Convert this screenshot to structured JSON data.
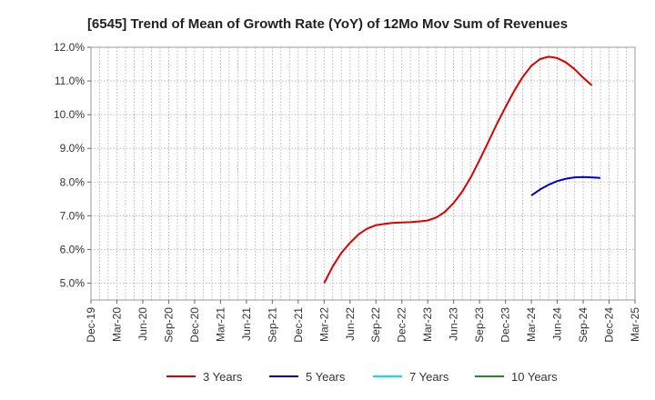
{
  "chart_data": {
    "type": "line",
    "title": "[6545]  Trend of Mean of Growth Rate (YoY) of 12Mo Mov Sum of Revenues",
    "xlabel": "",
    "ylabel": "",
    "ylim": [
      4.5,
      12.0
    ],
    "y_ticks": [
      5.0,
      6.0,
      7.0,
      8.0,
      9.0,
      10.0,
      11.0,
      12.0
    ],
    "y_tick_labels": [
      "5.0%",
      "6.0%",
      "7.0%",
      "8.0%",
      "9.0%",
      "10.0%",
      "11.0%",
      "12.0%"
    ],
    "x_tick_labels": [
      "Dec-19",
      "Mar-20",
      "Jun-20",
      "Sep-20",
      "Dec-20",
      "Mar-21",
      "Jun-21",
      "Sep-21",
      "Dec-21",
      "Mar-22",
      "Jun-22",
      "Sep-22",
      "Dec-22",
      "Mar-23",
      "Jun-23",
      "Sep-23",
      "Dec-23",
      "Mar-24",
      "Jun-24",
      "Sep-24",
      "Dec-24",
      "Mar-25"
    ],
    "grid": true,
    "legend_position": "bottom",
    "series": [
      {
        "name": "3 Years",
        "color": "#dd0000",
        "points": [
          [
            27,
            5.0
          ],
          [
            28,
            5.5
          ],
          [
            29,
            5.9
          ],
          [
            30,
            6.2
          ],
          [
            31,
            6.45
          ],
          [
            32,
            6.62
          ],
          [
            33,
            6.72
          ],
          [
            34,
            6.76
          ],
          [
            35,
            6.79
          ],
          [
            36,
            6.8
          ],
          [
            37,
            6.81
          ],
          [
            38,
            6.83
          ],
          [
            39,
            6.86
          ],
          [
            40,
            6.95
          ],
          [
            41,
            7.12
          ],
          [
            42,
            7.38
          ],
          [
            43,
            7.72
          ],
          [
            44,
            8.15
          ],
          [
            45,
            8.65
          ],
          [
            46,
            9.18
          ],
          [
            47,
            9.72
          ],
          [
            48,
            10.22
          ],
          [
            49,
            10.7
          ],
          [
            50,
            11.12
          ],
          [
            51,
            11.45
          ],
          [
            52,
            11.65
          ],
          [
            53,
            11.72
          ],
          [
            54,
            11.68
          ],
          [
            55,
            11.55
          ],
          [
            56,
            11.35
          ],
          [
            57,
            11.1
          ],
          [
            58,
            10.87
          ]
        ]
      },
      {
        "name": "5 Years",
        "color": "#0000cc",
        "points": [
          [
            51,
            7.6
          ],
          [
            52,
            7.78
          ],
          [
            53,
            7.92
          ],
          [
            54,
            8.03
          ],
          [
            55,
            8.1
          ],
          [
            56,
            8.14
          ],
          [
            57,
            8.15
          ],
          [
            58,
            8.14
          ],
          [
            59,
            8.12
          ]
        ]
      },
      {
        "name": "7 Years",
        "color": "#00e5ee",
        "points": []
      },
      {
        "name": "10 Years",
        "color": "#228b22",
        "points": []
      }
    ]
  }
}
